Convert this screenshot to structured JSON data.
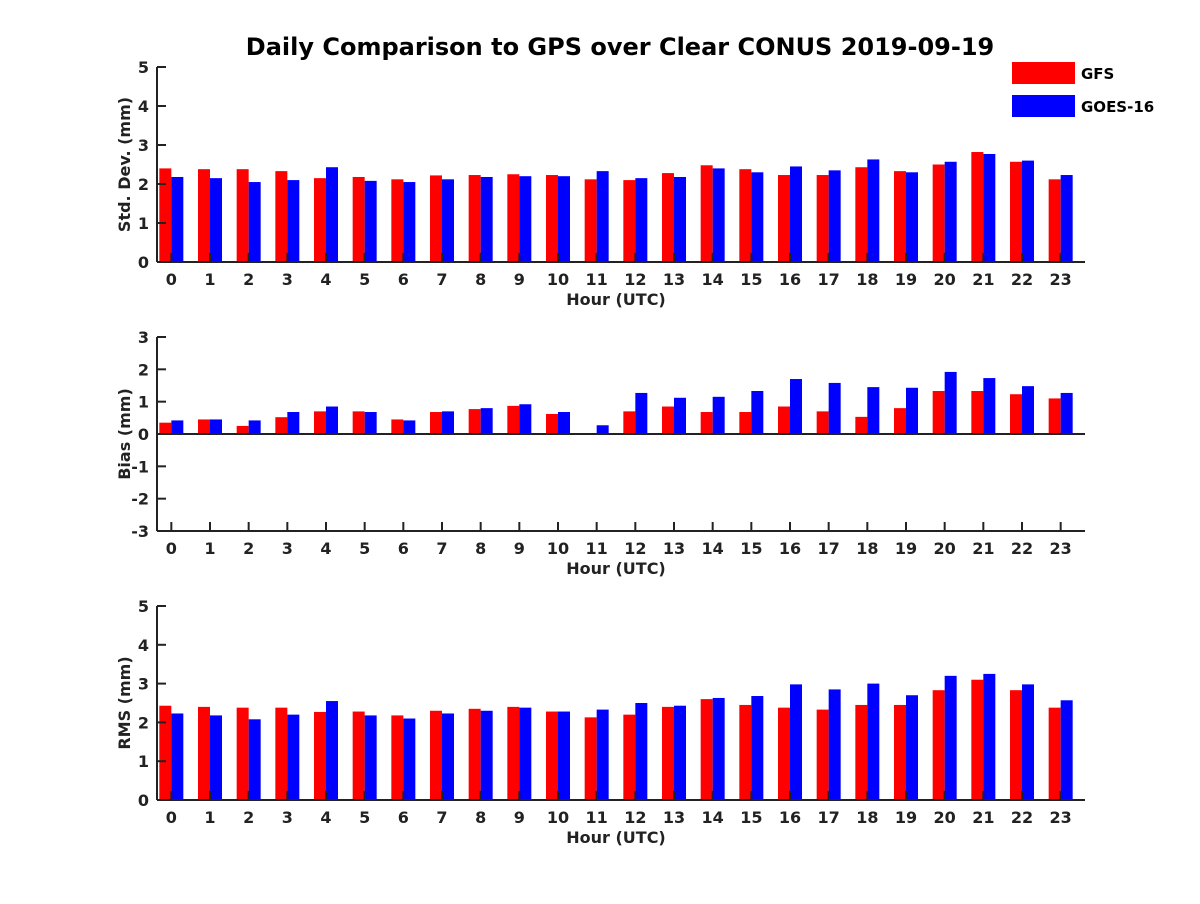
{
  "chart_title": "Daily Comparison to GPS over Clear CONUS 2019-09-19",
  "legend": [
    {
      "name": "GFS",
      "color": "#ff0000"
    },
    {
      "name": "GOES-16",
      "color": "#0000ff"
    }
  ],
  "chart_data": [
    {
      "type": "bar",
      "title": "Daily Comparison to GPS over Clear CONUS 2019-09-19",
      "xlabel": "Hour (UTC)",
      "ylabel": "Std. Dev. (mm)",
      "ylim": [
        0,
        5
      ],
      "yticks": [
        "0",
        "1",
        "2",
        "3",
        "4",
        "5"
      ],
      "categories": [
        "0",
        "1",
        "2",
        "3",
        "4",
        "5",
        "6",
        "7",
        "8",
        "9",
        "10",
        "11",
        "12",
        "13",
        "14",
        "15",
        "16",
        "17",
        "18",
        "19",
        "20",
        "21",
        "22",
        "23"
      ],
      "series": [
        {
          "name": "GFS",
          "color": "#ff0000",
          "values": [
            2.4,
            2.38,
            2.38,
            2.33,
            2.15,
            2.18,
            2.12,
            2.22,
            2.23,
            2.25,
            2.23,
            2.12,
            2.1,
            2.28,
            2.48,
            2.38,
            2.23,
            2.23,
            2.43,
            2.33,
            2.5,
            2.82,
            2.57,
            2.12
          ]
        },
        {
          "name": "GOES-16",
          "color": "#0000ff",
          "values": [
            2.18,
            2.15,
            2.05,
            2.1,
            2.43,
            2.08,
            2.05,
            2.12,
            2.18,
            2.2,
            2.2,
            2.33,
            2.15,
            2.18,
            2.4,
            2.3,
            2.45,
            2.35,
            2.63,
            2.3,
            2.57,
            2.77,
            2.6,
            2.23
          ]
        }
      ]
    },
    {
      "type": "bar",
      "title": "",
      "xlabel": "Hour (UTC)",
      "ylabel": "Bias (mm)",
      "ylim": [
        -3,
        3
      ],
      "yticks": [
        "-3",
        "-2",
        "-1",
        "0",
        "1",
        "2",
        "3"
      ],
      "categories": [
        "0",
        "1",
        "2",
        "3",
        "4",
        "5",
        "6",
        "7",
        "8",
        "9",
        "10",
        "11",
        "12",
        "13",
        "14",
        "15",
        "16",
        "17",
        "18",
        "19",
        "20",
        "21",
        "22",
        "23"
      ],
      "series": [
        {
          "name": "GFS",
          "color": "#ff0000",
          "values": [
            0.35,
            0.45,
            0.25,
            0.52,
            0.7,
            0.7,
            0.45,
            0.68,
            0.77,
            0.87,
            0.62,
            0.0,
            0.7,
            0.85,
            0.68,
            0.68,
            0.85,
            0.7,
            0.53,
            0.8,
            1.33,
            1.33,
            1.23,
            1.1
          ]
        },
        {
          "name": "GOES-16",
          "color": "#0000ff",
          "values": [
            0.42,
            0.45,
            0.42,
            0.68,
            0.85,
            0.68,
            0.42,
            0.7,
            0.8,
            0.92,
            0.68,
            0.27,
            1.27,
            1.12,
            1.15,
            1.33,
            1.7,
            1.58,
            1.45,
            1.43,
            1.92,
            1.73,
            1.48,
            1.27
          ]
        }
      ]
    },
    {
      "type": "bar",
      "title": "",
      "xlabel": "Hour (UTC)",
      "ylabel": "RMS (mm)",
      "ylim": [
        0,
        5
      ],
      "yticks": [
        "0",
        "1",
        "2",
        "3",
        "4",
        "5"
      ],
      "categories": [
        "0",
        "1",
        "2",
        "3",
        "4",
        "5",
        "6",
        "7",
        "8",
        "9",
        "10",
        "11",
        "12",
        "13",
        "14",
        "15",
        "16",
        "17",
        "18",
        "19",
        "20",
        "21",
        "22",
        "23"
      ],
      "series": [
        {
          "name": "GFS",
          "color": "#ff0000",
          "values": [
            2.43,
            2.4,
            2.38,
            2.38,
            2.27,
            2.28,
            2.18,
            2.3,
            2.35,
            2.4,
            2.28,
            2.13,
            2.2,
            2.4,
            2.6,
            2.45,
            2.38,
            2.33,
            2.45,
            2.45,
            2.83,
            3.1,
            2.83,
            2.38
          ]
        },
        {
          "name": "GOES-16",
          "color": "#0000ff",
          "values": [
            2.23,
            2.18,
            2.08,
            2.2,
            2.55,
            2.18,
            2.1,
            2.23,
            2.3,
            2.38,
            2.28,
            2.33,
            2.5,
            2.43,
            2.63,
            2.68,
            2.98,
            2.85,
            3.0,
            2.7,
            3.2,
            3.25,
            2.98,
            2.57
          ]
        }
      ]
    }
  ]
}
